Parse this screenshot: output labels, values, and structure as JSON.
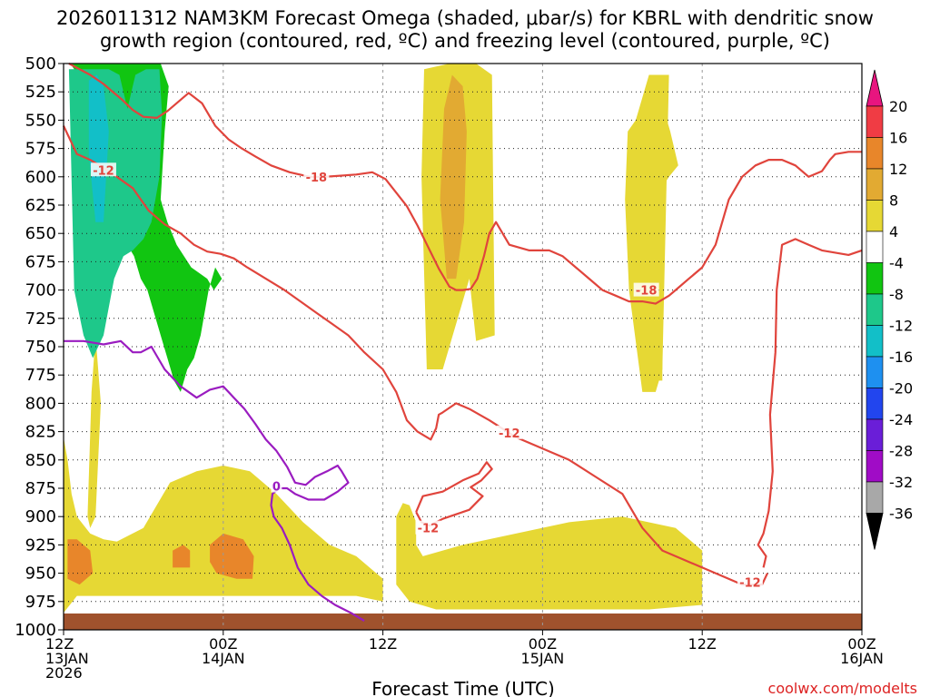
{
  "chart_data": {
    "type": "heatmap",
    "title_line1": "2026011312 NAM3KM Forecast Omega (shaded, μbar/s) for KBRL with dendritic snow",
    "title_line2": "growth region (contoured, red, ºC) and freezing level (contoured, purple, ºC)",
    "xlabel": "Forecast Time (UTC)",
    "credit": "coolwx.com/modelts",
    "x_range_hours": [
      0,
      60
    ],
    "y_range_mb": [
      500,
      1000
    ],
    "y_ticks": [
      {
        "v": 500,
        "label": "500"
      },
      {
        "v": 525,
        "label": "525"
      },
      {
        "v": 550,
        "label": "550"
      },
      {
        "v": 575,
        "label": "575"
      },
      {
        "v": 600,
        "label": "600"
      },
      {
        "v": 625,
        "label": "625"
      },
      {
        "v": 650,
        "label": "650"
      },
      {
        "v": 675,
        "label": "675"
      },
      {
        "v": 700,
        "label": "700"
      },
      {
        "v": 725,
        "label": "725"
      },
      {
        "v": 750,
        "label": "750"
      },
      {
        "v": 775,
        "label": "775"
      },
      {
        "v": 800,
        "label": "800"
      },
      {
        "v": 825,
        "label": "825"
      },
      {
        "v": 850,
        "label": "850"
      },
      {
        "v": 875,
        "label": "875"
      },
      {
        "v": 900,
        "label": "900"
      },
      {
        "v": 925,
        "label": "925"
      },
      {
        "v": 950,
        "label": "950"
      },
      {
        "v": 975,
        "label": "975"
      },
      {
        "v": 1000,
        "label": "1000"
      }
    ],
    "x_ticks": [
      {
        "h": 0,
        "lines": [
          "12Z",
          "13JAN",
          "2026"
        ]
      },
      {
        "h": 12,
        "lines": [
          "00Z",
          "14JAN"
        ]
      },
      {
        "h": 24,
        "lines": [
          "12Z"
        ]
      },
      {
        "h": 36,
        "lines": [
          "00Z",
          "15JAN"
        ]
      },
      {
        "h": 48,
        "lines": [
          "12Z"
        ]
      },
      {
        "h": 60,
        "lines": [
          "00Z",
          "16JAN"
        ]
      }
    ],
    "colorbar": {
      "labels": [
        "20",
        "16",
        "12",
        "8",
        "4",
        "-4",
        "-8",
        "-12",
        "-16",
        "-20",
        "-24",
        "-28",
        "-32",
        "-36"
      ],
      "top_color": "#e8157f",
      "bottom_color": "#000000",
      "colors": [
        "#f03c44",
        "#e8862a",
        "#e2aa32",
        "#e6d834",
        "#ffffff",
        "#11c511",
        "#1ec88a",
        "#12bfc8",
        "#1e90f0",
        "#2245ee",
        "#6a1ed8",
        "#a00cc6",
        "#a8a8a8"
      ]
    },
    "omega_regions": [
      {
        "color": "#e6d834",
        "hours": [
          0,
          0.3,
          0.6,
          1,
          2,
          3,
          4,
          6,
          8,
          10,
          12,
          14,
          16,
          18,
          20,
          22,
          24,
          24,
          22,
          20,
          18,
          16,
          14,
          12,
          10,
          8,
          6,
          4,
          2,
          1,
          0
        ],
        "mb": [
          830,
          850,
          880,
          900,
          915,
          920,
          922,
          910,
          870,
          860,
          855,
          860,
          880,
          905,
          925,
          935,
          955,
          975,
          970,
          970,
          970,
          970,
          970,
          970,
          970,
          970,
          970,
          970,
          970,
          970,
          985
        ]
      },
      {
        "color": "#e6d834",
        "hours": [
          1.8,
          2.1,
          2.4,
          2.8,
          2.4,
          2.0
        ],
        "mb": [
          900,
          790,
          740,
          800,
          900,
          910
        ]
      },
      {
        "color": "#e6d834",
        "hours": [
          25,
          25.5,
          26,
          26.5,
          26.5,
          27,
          30,
          34,
          38,
          42,
          46,
          48,
          48,
          44,
          40,
          36,
          32,
          28,
          26,
          25
        ],
        "mb": [
          900,
          888,
          890,
          905,
          925,
          935,
          925,
          915,
          905,
          900,
          910,
          930,
          978,
          982,
          982,
          982,
          982,
          982,
          975,
          960
        ]
      },
      {
        "color": "#e6d834",
        "hours": [
          27.1,
          29,
          31,
          32.2,
          32.4,
          31,
          30.5,
          28.5,
          27.3,
          26.9
        ],
        "mb": [
          505,
          500,
          500,
          510,
          740,
          745,
          690,
          770,
          770,
          600
        ]
      },
      {
        "color": "#e6d834",
        "hours": [
          42.4,
          43,
          44,
          45.5,
          45,
          44.5,
          43.5,
          42.5,
          42.2
        ],
        "mb": [
          560,
          550,
          510,
          510,
          770,
          790,
          790,
          700,
          620
        ]
      },
      {
        "color": "#e6d834",
        "hours": [
          43.8,
          44.2,
          44.6,
          45.6,
          46.2,
          45.5,
          44.4,
          43.8
        ],
        "mb": [
          560,
          525,
          520,
          560,
          590,
          600,
          620,
          600
        ]
      },
      {
        "color": "#e6d834",
        "hours": [
          43.5,
          44.5,
          45,
          45,
          43.5
        ],
        "mb": [
          650,
          640,
          680,
          780,
          780
        ]
      },
      {
        "color": "#e8862a",
        "hours": [
          0.3,
          1,
          2,
          2.2,
          1.2,
          0.3
        ],
        "mb": [
          920,
          920,
          930,
          950,
          960,
          955
        ]
      },
      {
        "color": "#e8862a",
        "hours": [
          8.2,
          9,
          9.5,
          9.5,
          8.2
        ],
        "mb": [
          930,
          925,
          930,
          945,
          945
        ]
      },
      {
        "color": "#e8862a",
        "hours": [
          11,
          12,
          13.5,
          14.3,
          14.2,
          13,
          11.5,
          11
        ],
        "mb": [
          925,
          915,
          920,
          935,
          955,
          955,
          950,
          940
        ]
      },
      {
        "color": "#e2aa32",
        "hours": [
          28.6,
          29.2,
          30,
          30.3,
          30.1,
          29.5,
          28.8,
          28.3
        ],
        "mb": [
          540,
          510,
          520,
          560,
          640,
          690,
          690,
          620
        ]
      },
      {
        "color": "#11c511",
        "hours": [
          0,
          2,
          7.3,
          7.9,
          7.6,
          7.3,
          7.8,
          8.5,
          9.6,
          10.8,
          11.3,
          11.9,
          11.4,
          10.9,
          10.3,
          9.8,
          9.3,
          8.8,
          8.3,
          7.8,
          7.3,
          6.8,
          6.3,
          5.8,
          5.3,
          4.8,
          4.3,
          3.8,
          3.3,
          2.8,
          2.3,
          1.9,
          1.5,
          1.1,
          0.5,
          0
        ],
        "mb": [
          500,
          500,
          500,
          520,
          560,
          620,
          640,
          660,
          680,
          690,
          700,
          690,
          680,
          700,
          740,
          760,
          770,
          790,
          780,
          760,
          740,
          720,
          700,
          690,
          670,
          660,
          640,
          620,
          600,
          580,
          560,
          540,
          520,
          510,
          500,
          500
        ]
      },
      {
        "color": "#1ec88a",
        "hours": [
          0.4,
          1.4,
          2.5,
          3.4,
          4.2,
          4.8,
          5.4,
          6.2,
          7.2,
          7.4,
          7.2,
          6.6,
          6.0,
          5.2,
          4.5,
          3.8,
          3.0,
          2.2,
          1.5,
          0.8
        ],
        "mb": [
          505,
          505,
          505,
          505,
          510,
          540,
          510,
          505,
          505,
          545,
          600,
          640,
          655,
          665,
          670,
          690,
          740,
          760,
          740,
          700
        ]
      },
      {
        "color": "#12bfc8",
        "hours": [
          1.9,
          2.5,
          3.0,
          3.4,
          3.0,
          2.4,
          1.9
        ],
        "mb": [
          515,
          510,
          520,
          560,
          640,
          640,
          580
        ]
      }
    ],
    "contours_red_18": [
      {
        "hours": [
          0.4,
          2,
          3,
          3.6,
          4.4,
          5.2,
          6.0,
          7.0,
          7.8,
          8.6,
          9.4,
          10.4,
          11.4,
          12.4,
          13.4,
          14.4,
          15.6,
          17.0,
          18.5,
          19.6,
          20.8,
          22.0,
          23.2,
          24.2,
          25.0,
          25.8,
          26.6,
          27.4,
          28.2,
          29.0,
          29.5,
          30.0,
          30.6,
          31.1,
          31.6,
          32.0,
          32.5,
          33.5,
          35.0,
          36.5,
          37.5,
          38.5,
          39.5,
          40.5,
          41.5,
          42.5,
          43.5,
          44.5,
          45.5,
          46.0,
          47.0,
          48.0,
          48.5,
          49.0,
          50.0,
          51.0,
          52.0,
          53.0,
          54.0,
          55.0,
          56.0,
          57.0,
          57.6,
          58.0,
          59.0,
          60.0
        ],
        "mb": [
          500,
          510,
          518,
          524,
          532,
          541,
          547,
          548,
          542,
          534,
          526,
          535,
          555,
          567,
          575,
          582,
          590,
          596,
          600,
          600,
          599,
          598,
          596,
          602,
          614,
          626,
          643,
          662,
          681,
          697,
          700,
          700,
          699,
          690,
          670,
          650,
          640,
          660,
          665,
          665,
          670,
          680,
          690,
          700,
          705,
          710,
          710,
          712,
          705,
          700,
          690,
          680,
          670,
          660,
          620,
          600,
          590,
          585,
          585,
          590,
          600,
          595,
          585,
          580,
          578,
          578
        ]
      }
    ],
    "contours_red_12": [
      {
        "hours": [
          0,
          1,
          2,
          3,
          4,
          5.2,
          6.4,
          7.6,
          8.8,
          9.8,
          10.8,
          11.8,
          12.8,
          13.8,
          15.2,
          16.6,
          17.8,
          19.0,
          20.2,
          21.4,
          22.6,
          24.0,
          25.0,
          25.8,
          26.6,
          27.6,
          28.0,
          28.2,
          28.5,
          29.5,
          30.5,
          32.0,
          34.0,
          36.0,
          38.0,
          40.0,
          42.0,
          43.5,
          45.0,
          47.0,
          49.0,
          51.0,
          52.5,
          52.9
        ],
        "mb": [
          555,
          580,
          585,
          592,
          600,
          610,
          630,
          642,
          650,
          660,
          666,
          668,
          672,
          680,
          690,
          700,
          710,
          720,
          730,
          740,
          755,
          770,
          790,
          815,
          825,
          832,
          822,
          810,
          808,
          800,
          805,
          815,
          830,
          840,
          850,
          865,
          880,
          910,
          930,
          940,
          950,
          960,
          960,
          950
        ]
      },
      {
        "hours": [
          26.5,
          27.0,
          28.5,
          30.0,
          31.2,
          31.8,
          32.2,
          31.4,
          30.6,
          31.5,
          30.5,
          29.5,
          28.5,
          27.5,
          26.9,
          26.5
        ],
        "mb": [
          896,
          882,
          878,
          868,
          862,
          852,
          858,
          868,
          874,
          882,
          894,
          898,
          902,
          908,
          905,
          896
        ]
      },
      {
        "hours": [
          52.6,
          52.8,
          52.2,
          52.6,
          53.0,
          53.3,
          53.1,
          53.5,
          53.6,
          54.0,
          55.0,
          56.0,
          57.0,
          58.0,
          59.0,
          60.0
        ],
        "mb": [
          945,
          935,
          925,
          915,
          895,
          860,
          810,
          755,
          700,
          660,
          655,
          660,
          665,
          667,
          669,
          665
        ]
      }
    ],
    "contours_purple_0": [
      {
        "hours": [
          0,
          1.5,
          3.0,
          4.3,
          5.2,
          5.8,
          6.6,
          7.6,
          8.8,
          10.0,
          11.0,
          12.0,
          12.8,
          13.6,
          14.4,
          15.2,
          16.0,
          16.8,
          17.4,
          18.2,
          18.9,
          19.8,
          20.6,
          20.9,
          21.4,
          20.6,
          19.6,
          18.4,
          17.4,
          16.8,
          16.2,
          15.7,
          15.6,
          15.8,
          16.4,
          17.0,
          17.6,
          18.4,
          19.4,
          20.4,
          21.6,
          22.6
        ],
        "mb": [
          745,
          745,
          748,
          745,
          755,
          755,
          750,
          770,
          785,
          795,
          788,
          785,
          795,
          805,
          818,
          832,
          842,
          856,
          870,
          872,
          865,
          860,
          855,
          860,
          870,
          878,
          885,
          885,
          880,
          875,
          875,
          880,
          890,
          900,
          910,
          925,
          945,
          960,
          970,
          978,
          985,
          992
        ]
      }
    ],
    "labels": [
      {
        "text": "-12",
        "h": 3.0,
        "mb": 594,
        "color": "red"
      },
      {
        "text": "-18",
        "h": 19.0,
        "mb": 600,
        "color": "red"
      },
      {
        "text": "-18",
        "h": 43.8,
        "mb": 700,
        "color": "red"
      },
      {
        "text": "-12",
        "h": 33.5,
        "mb": 826,
        "color": "red"
      },
      {
        "text": "-12",
        "h": 27.4,
        "mb": 910,
        "color": "red"
      },
      {
        "text": "-12",
        "h": 51.6,
        "mb": 958,
        "color": "red"
      },
      {
        "text": "0",
        "h": 16.0,
        "mb": 873,
        "color": "purple"
      }
    ]
  }
}
